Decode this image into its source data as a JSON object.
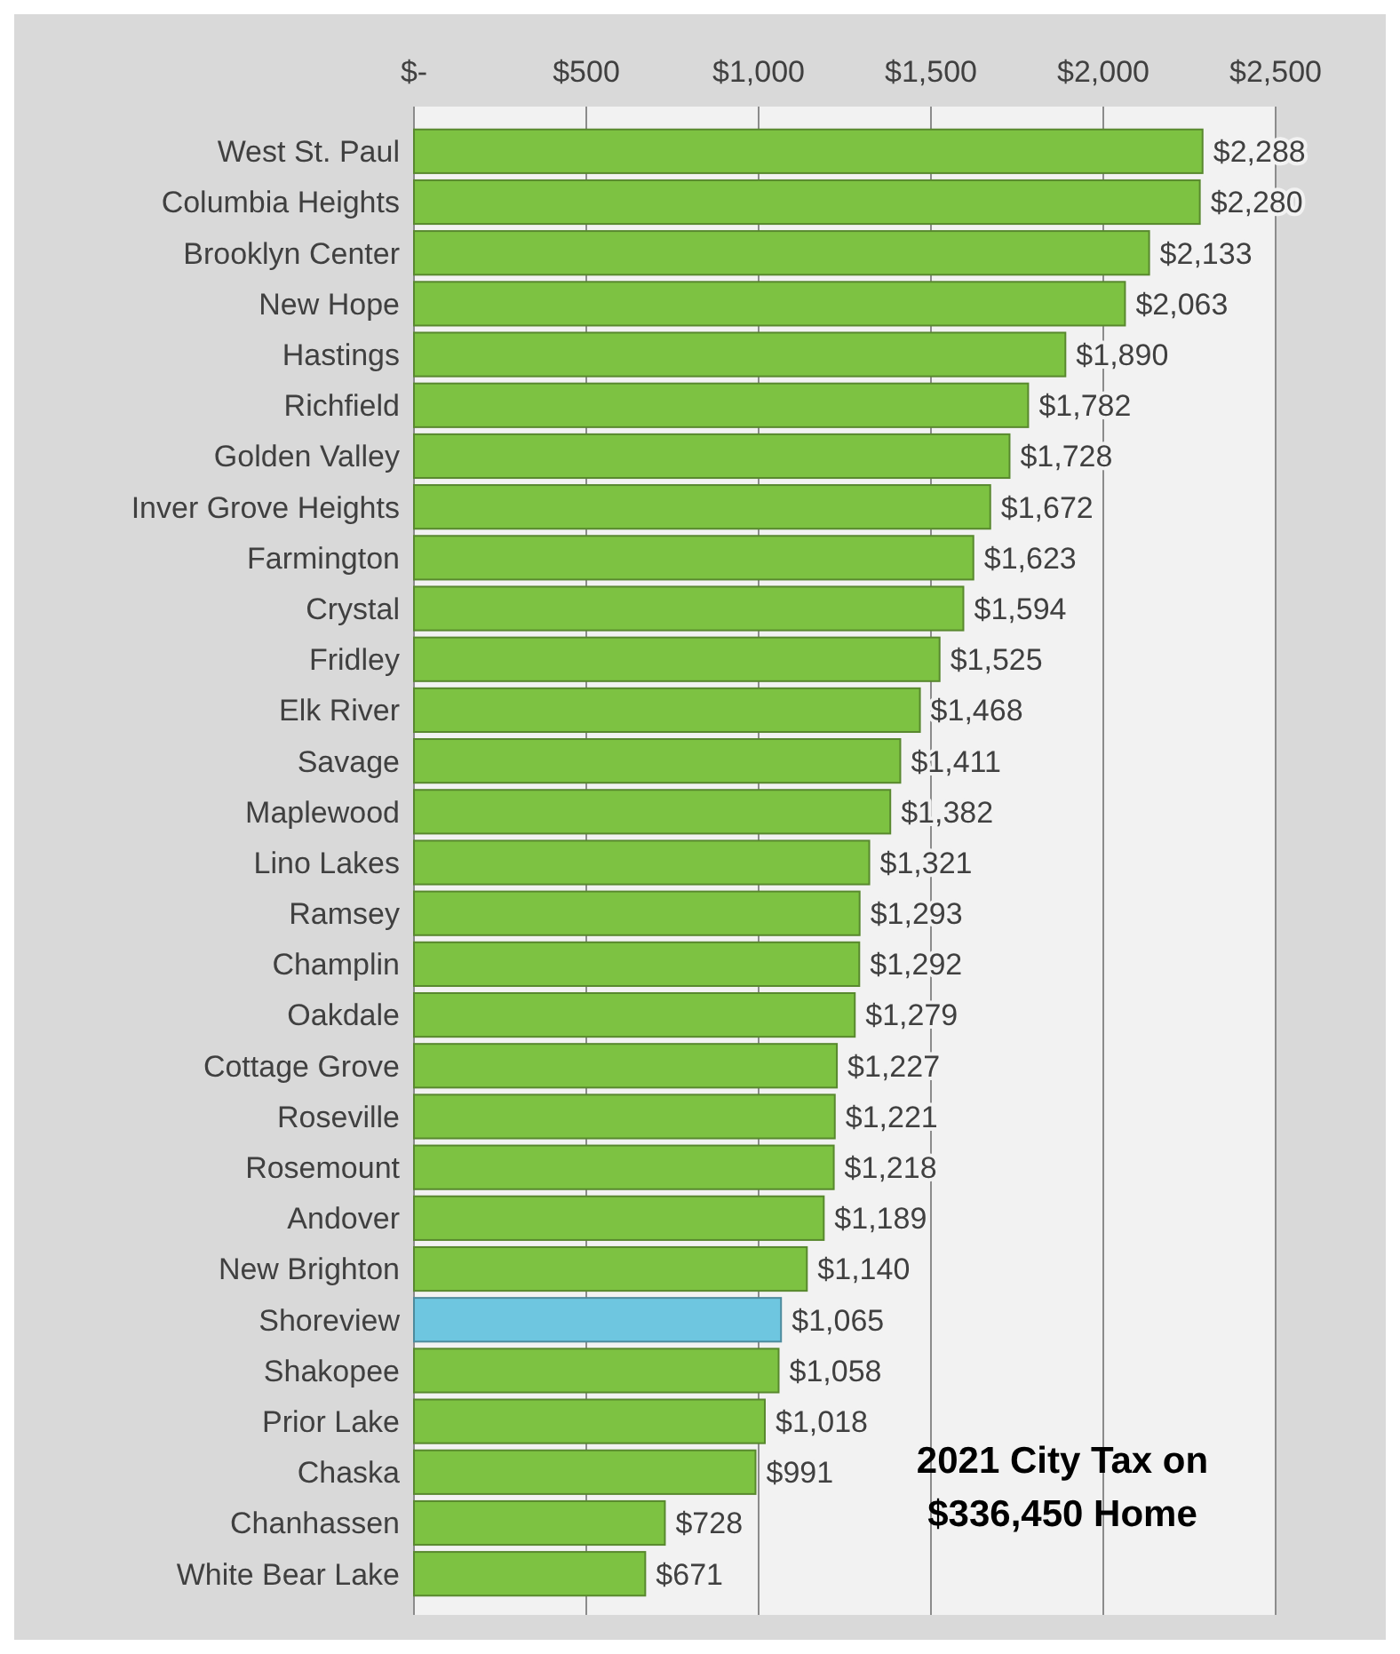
{
  "chart_data": {
    "type": "bar",
    "orientation": "horizontal",
    "title": "2021 City Tax on $336,450 Home",
    "categories": [
      "West St. Paul",
      "Columbia Heights",
      "Brooklyn Center",
      "New Hope",
      "Hastings",
      "Richfield",
      "Golden Valley",
      "Inver Grove Heights",
      "Farmington",
      "Crystal",
      "Fridley",
      "Elk River",
      "Savage",
      "Maplewood",
      "Lino Lakes",
      "Ramsey",
      "Champlin",
      "Oakdale",
      "Cottage Grove",
      "Roseville",
      "Rosemount",
      "Andover",
      "New Brighton",
      "Shoreview",
      "Shakopee",
      "Prior Lake",
      "Chaska",
      "Chanhassen",
      "White Bear Lake"
    ],
    "values": [
      2288,
      2280,
      2133,
      2063,
      1890,
      1782,
      1728,
      1672,
      1623,
      1594,
      1525,
      1468,
      1411,
      1382,
      1321,
      1293,
      1292,
      1279,
      1227,
      1221,
      1218,
      1189,
      1140,
      1065,
      1058,
      1018,
      991,
      728,
      671
    ],
    "value_labels": [
      "$2,288",
      "$2,280",
      "$2,133",
      "$2,063",
      "$1,890",
      "$1,782",
      "$1,728",
      "$1,672",
      "$1,623",
      "$1,594",
      "$1,525",
      "$1,468",
      "$1,411",
      "$1,382",
      "$1,321",
      "$1,293",
      "$1,292",
      "$1,279",
      "$1,227",
      "$1,221",
      "$1,218",
      "$1,189",
      "$1,140",
      "$1,065",
      "$1,058",
      "$1,018",
      "$991",
      "$728",
      "$671"
    ],
    "colors": [
      "#7dc242",
      "#7dc242",
      "#7dc242",
      "#7dc242",
      "#7dc242",
      "#7dc242",
      "#7dc242",
      "#7dc242",
      "#7dc242",
      "#7dc242",
      "#7dc242",
      "#7dc242",
      "#7dc242",
      "#7dc242",
      "#7dc242",
      "#7dc242",
      "#7dc242",
      "#7dc242",
      "#7dc242",
      "#7dc242",
      "#7dc242",
      "#7dc242",
      "#7dc242",
      "#6ec6e0",
      "#7dc242",
      "#7dc242",
      "#7dc242",
      "#7dc242",
      "#7dc242"
    ],
    "xlim": [
      0,
      2500
    ],
    "xticks": [
      {
        "value": 0,
        "label": "$-"
      },
      {
        "value": 500,
        "label": "$500"
      },
      {
        "value": 1000,
        "label": "$1,000"
      },
      {
        "value": 1500,
        "label": "$1,500"
      },
      {
        "value": 2000,
        "label": "$2,000"
      },
      {
        "value": 2500,
        "label": "$2,500"
      }
    ],
    "grid": "x"
  }
}
